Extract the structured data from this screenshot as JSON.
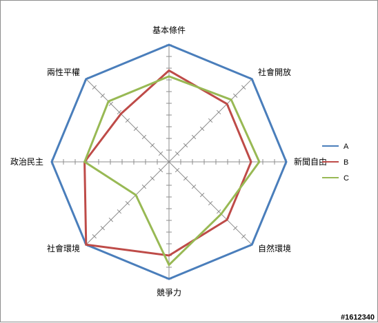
{
  "chart_data": {
    "type": "radar",
    "axes": [
      "基本條件",
      "社會開放",
      "新聞自由",
      "自然環境",
      "競爭力",
      "社會環境",
      "政治民主",
      "兩性平權"
    ],
    "rlim": [
      0,
      10
    ],
    "gridlines": true,
    "legend_position": "right",
    "series": [
      {
        "name": "A",
        "color": "#4a7ebb",
        "values": [
          10,
          10,
          10,
          10,
          10,
          10,
          10,
          10
        ]
      },
      {
        "name": "B",
        "color": "#be4b48",
        "values": [
          7.8,
          7.0,
          7.0,
          7.0,
          8.0,
          10.0,
          7.2,
          5.8
        ]
      },
      {
        "name": "C",
        "color": "#98b954",
        "values": [
          7.3,
          7.5,
          7.7,
          6.3,
          8.8,
          4.0,
          7.2,
          7.3
        ]
      }
    ]
  },
  "watermark": "#1612340"
}
